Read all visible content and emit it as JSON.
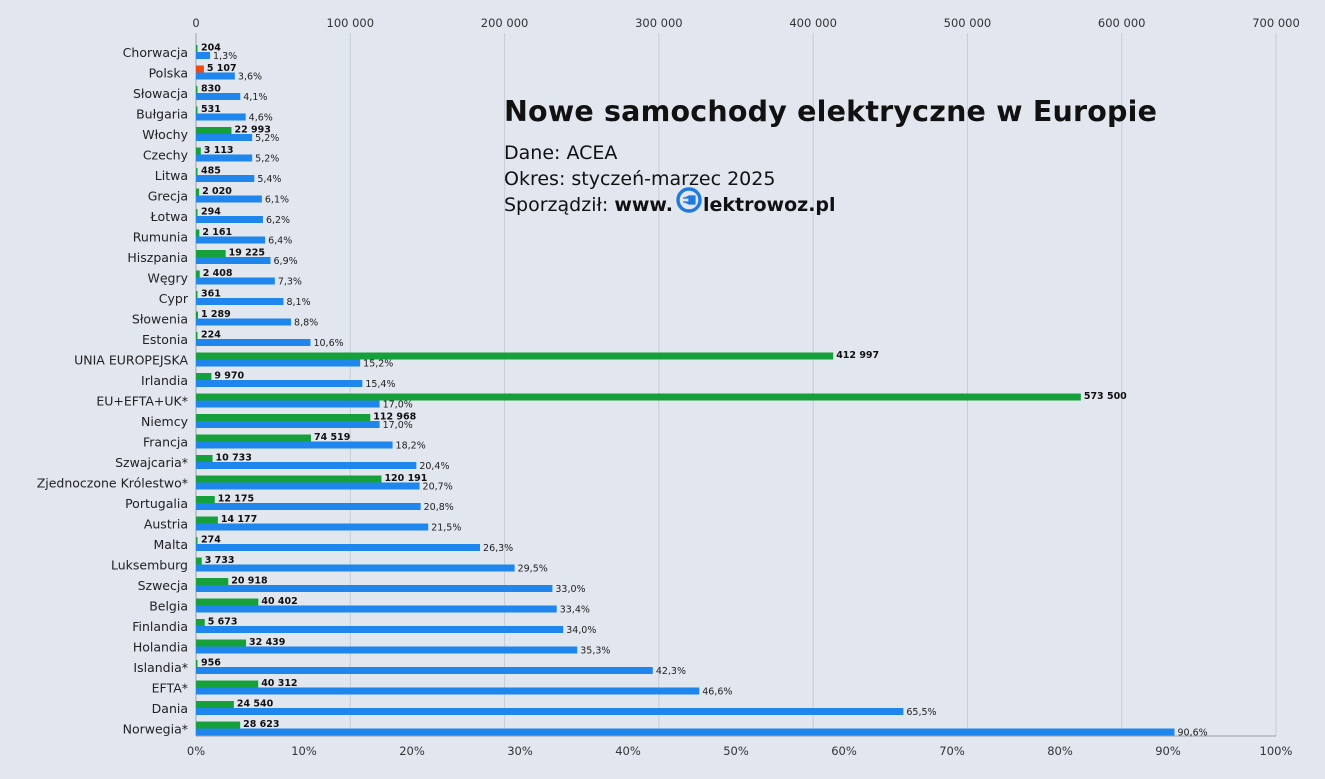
{
  "title_block": {
    "title": "Nowe samochody elektryczne w Europie",
    "source_line": "Dane: ACEA",
    "period_line": "Okres: styczeń-marzec 2025",
    "author_prefix": "Sporządził: ",
    "brand_before": "www.",
    "brand_after": "lektrowoz.pl",
    "brand_icon": "plug-e-icon",
    "brand_color": "#1f7ae0"
  },
  "colors": {
    "background": "#e1e6ef",
    "count_bar": "#16a03c",
    "count_bar_highlight": "#f04a12",
    "share_bar": "#1f86ee",
    "gridline": "#c7ccd6"
  },
  "chart_data": {
    "type": "bar",
    "orientation": "horizontal",
    "categories": [
      "Chorwacja",
      "Polska",
      "Słowacja",
      "Bułgaria",
      "Włochy",
      "Czechy",
      "Litwa",
      "Grecja",
      "Łotwa",
      "Rumunia",
      "Hiszpania",
      "Węgry",
      "Cypr",
      "Słowenia",
      "Estonia",
      "UNIA EUROPEJSKA",
      "Irlandia",
      "EU+EFTA+UK*",
      "Niemcy",
      "Francja",
      "Szwajcaria*",
      "Zjednoczone Królestwo*",
      "Portugalia",
      "Austria",
      "Malta",
      "Luksemburg",
      "Szwecja",
      "Belgia",
      "Finlandia",
      "Holandia",
      "Islandia*",
      "EFTA*",
      "Dania",
      "Norwegia*"
    ],
    "series": [
      {
        "axis": "top",
        "values": [
          204,
          5107,
          830,
          531,
          22993,
          3113,
          485,
          2020,
          294,
          2161,
          19225,
          2408,
          361,
          1289,
          224,
          412997,
          9970,
          573500,
          112968,
          74519,
          10733,
          120191,
          12175,
          14177,
          274,
          3733,
          20918,
          40402,
          5673,
          32439,
          956,
          40312,
          24540,
          28623
        ],
        "labels": [
          "204",
          "5 107",
          "830",
          "531",
          "22 993",
          "3 113",
          "485",
          "2 020",
          "294",
          "2 161",
          "19 225",
          "2 408",
          "361",
          "1 289",
          "224",
          "412 997",
          "9 970",
          "573 500",
          "112 968",
          "74 519",
          "10 733",
          "120 191",
          "12 175",
          "14 177",
          "274",
          "3 733",
          "20 918",
          "40 402",
          "5 673",
          "32 439",
          "956",
          "40 312",
          "24 540",
          "28 623"
        ],
        "highlight_index": 1
      },
      {
        "axis": "bottom",
        "values": [
          1.3,
          3.6,
          4.1,
          4.6,
          5.2,
          5.2,
          5.4,
          6.1,
          6.2,
          6.4,
          6.9,
          7.3,
          8.1,
          8.8,
          10.6,
          15.2,
          15.4,
          17.0,
          17.0,
          18.2,
          20.4,
          20.7,
          20.8,
          21.5,
          26.3,
          29.5,
          33.0,
          33.4,
          34.0,
          35.3,
          42.3,
          46.6,
          65.5,
          90.6
        ],
        "labels": [
          "1,3%",
          "3,6%",
          "4,1%",
          "4,6%",
          "5,2%",
          "5,2%",
          "5,4%",
          "6,1%",
          "6,2%",
          "6,4%",
          "6,9%",
          "7,3%",
          "8,1%",
          "8,8%",
          "10,6%",
          "15,2%",
          "15,4%",
          "17,0%",
          "17,0%",
          "18,2%",
          "20,4%",
          "20,7%",
          "20,8%",
          "21,5%",
          "26,3%",
          "29,5%",
          "33,0%",
          "33,4%",
          "34,0%",
          "35,3%",
          "42,3%",
          "46,6%",
          "65,5%",
          "90,6%"
        ]
      }
    ],
    "top_axis": {
      "min": 0,
      "max": 700000,
      "ticks": [
        0,
        100000,
        200000,
        300000,
        400000,
        500000,
        600000,
        700000
      ],
      "tick_labels": [
        "0",
        "100 000",
        "200 000",
        "300 000",
        "400 000",
        "500 000",
        "600 000",
        "700 000"
      ]
    },
    "bottom_axis": {
      "min": 0,
      "max": 100,
      "ticks": [
        0,
        10,
        20,
        30,
        40,
        50,
        60,
        70,
        80,
        90,
        100
      ],
      "tick_labels": [
        "0%",
        "10%",
        "20%",
        "30%",
        "40%",
        "50%",
        "60%",
        "70%",
        "80%",
        "90%",
        "100%"
      ]
    },
    "grid": true
  }
}
